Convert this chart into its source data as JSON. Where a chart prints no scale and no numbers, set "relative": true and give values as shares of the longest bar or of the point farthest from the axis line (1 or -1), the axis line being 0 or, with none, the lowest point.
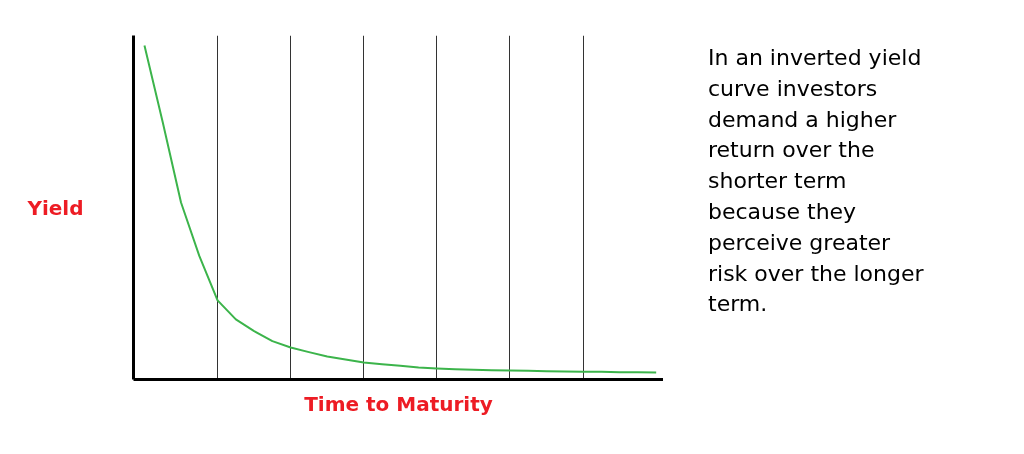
{
  "chart_data": {
    "type": "line",
    "relative": true,
    "xlabel": "Time to Maturity",
    "ylabel": "Yield",
    "categories": [
      null,
      null,
      null,
      null,
      null,
      null,
      null,
      null,
      null,
      null,
      null,
      null,
      null,
      null,
      null,
      null,
      null,
      null,
      null,
      null,
      null,
      null,
      null,
      null,
      null,
      null,
      null,
      null,
      null
    ],
    "series": [
      {
        "color": "#3cb44b",
        "values": [
          1,
          0.77,
          0.53,
          0.37,
          0.237,
          0.18,
          0.145,
          0.115,
          0.096,
          0.082,
          0.069,
          0.06,
          0.051,
          0.046,
          0.041,
          0.036,
          0.033,
          0.031,
          0.029,
          0.028,
          0.027,
          0.026,
          0.025,
          0.024,
          0.023,
          0.023,
          0.022,
          0.022,
          0.021
        ]
      }
    ],
    "grid": "x",
    "line_style": "solid",
    "annotations": [
      "In an inverted yield\ncurve investors\ndemand a higher\nreturn over the\nshorter term\nbecause they\nperceive greater\nrisk over the longer\nterm."
    ]
  }
}
